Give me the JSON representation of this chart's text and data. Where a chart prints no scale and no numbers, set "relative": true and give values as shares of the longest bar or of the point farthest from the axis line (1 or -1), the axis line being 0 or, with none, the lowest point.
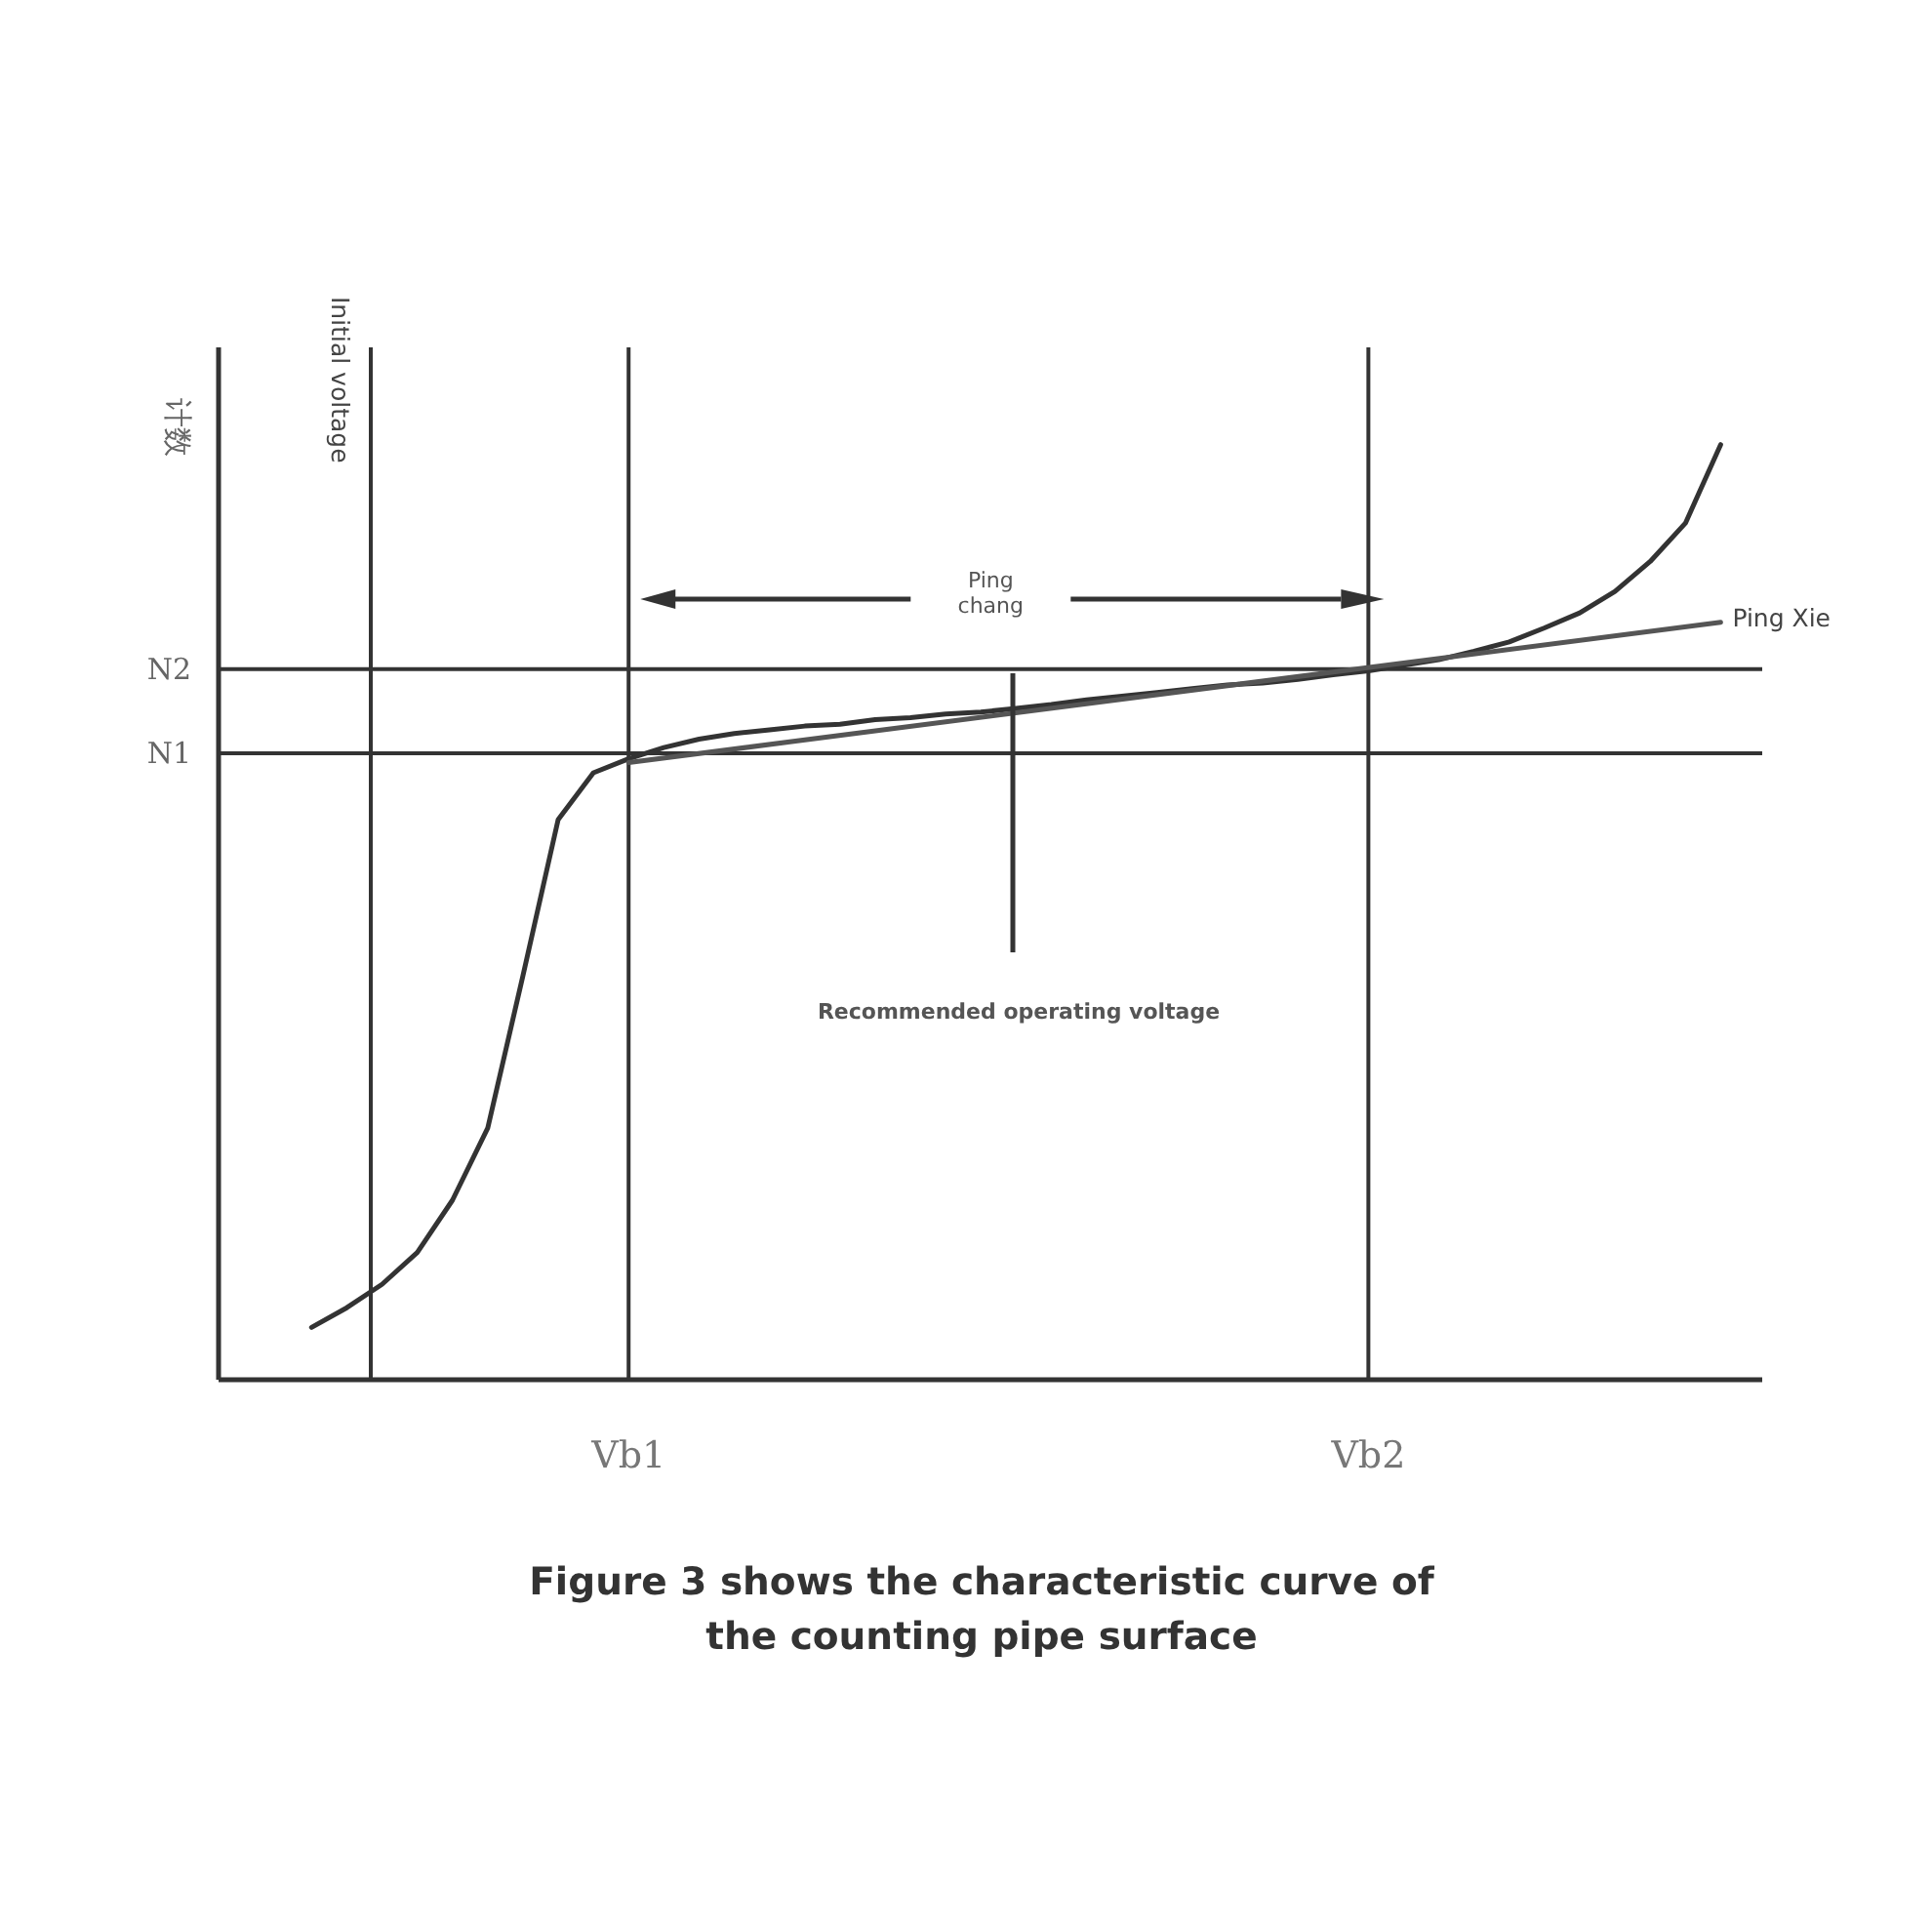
{
  "chart_data": {
    "type": "line",
    "relative": true,
    "ylabel": "计数",
    "grid": "x",
    "categories": [
      null,
      null,
      null,
      null,
      null,
      null,
      null,
      null,
      null,
      "Vb1",
      null,
      null,
      null,
      null,
      null,
      null,
      null,
      null,
      null,
      null,
      null,
      null,
      null,
      null,
      null,
      null,
      null,
      null,
      null,
      null,
      "Vb2",
      null,
      null,
      null,
      null,
      null,
      null,
      null,
      null,
      null,
      null
    ],
    "series": [
      {
        "color": "#333333",
        "values": [
          0.056,
          0.077,
          0.102,
          0.136,
          0.192,
          0.269,
          0.432,
          0.599,
          0.649,
          0.664,
          0.676,
          0.685,
          0.691,
          0.695,
          0.699,
          0.701,
          0.706,
          0.708,
          0.712,
          0.714,
          0.718,
          0.722,
          0.727,
          0.731,
          0.735,
          0.739,
          0.743,
          0.745,
          0.749,
          0.754,
          0.758,
          0.764,
          0.77,
          0.779,
          0.789,
          0.804,
          0.82,
          0.843,
          0.875,
          0.916,
          1
        ]
      },
      {
        "name": "Ping Xie",
        "type": "line",
        "color": "#555555",
        "values": [
          null,
          null,
          null,
          null,
          null,
          null,
          null,
          null,
          null,
          0.66,
          null,
          null,
          null,
          null,
          null,
          null,
          null,
          null,
          null,
          null,
          null,
          null,
          null,
          null,
          null,
          null,
          null,
          null,
          null,
          null,
          null,
          null,
          null,
          null,
          null,
          null,
          null,
          null,
          null,
          null,
          0.81
        ]
      }
    ],
    "ref_lines": [
      {
        "axis": "y",
        "value": 0.67,
        "label": "N1",
        "color": "#333333"
      },
      {
        "axis": "y",
        "value": 0.76,
        "label": "N2",
        "color": "#333333"
      }
    ],
    "annotations": [
      "Initial voltage",
      "Ping chang",
      "Recommended operating voltage",
      "Figure 3 shows the characteristic curve of the counting pipe surface"
    ]
  }
}
